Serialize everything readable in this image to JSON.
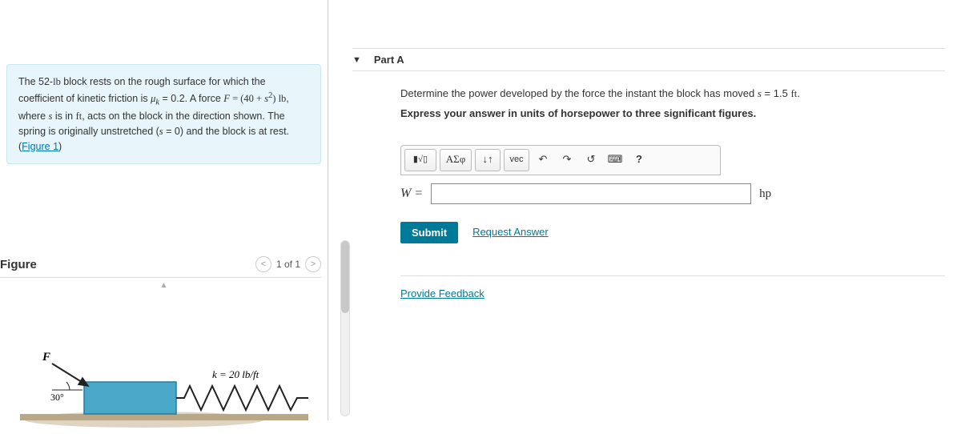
{
  "problem": {
    "html": "The 52-<span class='serif'>lb</span> block rests on the rough surface for which the coefficient of kinetic friction is <span class='serif'><i>μ<sub>k</sub></i></span> = 0.2. A force <span class='serif'><i>F</i> = (40 + <i>s</i><sup>2</sup>) lb</span>, where <span class='serif'><i>s</i></span> is in <span class='serif'>ft</span>, acts on the block in the direction shown. The spring is originally unstretched (<span class='serif'><i>s</i></span> = 0) and the block is at rest. (",
    "figure_link": "Figure 1",
    "html_tail": ")"
  },
  "figure": {
    "title": "Figure",
    "nav_text": "1 of 1",
    "force_label": "F",
    "angle_label": "30°",
    "spring_label": "k = 20 lb/ft",
    "block_color": "#4aa8c9",
    "spring_color": "#222222",
    "ground_color": "#b8a888",
    "shadow_color": "#c8b898"
  },
  "part": {
    "label": "Part A",
    "q1": "Determine the power developed by the force the instant the block has moved <span class='serif'><i>s</i></span> = 1.5 <span class='serif'>ft</span>.",
    "q2": "Express your answer in units of horsepower to three significant figures.",
    "toolbar": {
      "templates": "▮√▯",
      "greek": "ΑΣφ",
      "sort": "↓↑",
      "vec": "vec",
      "undo": "↶",
      "redo": "↷",
      "reset": "↺",
      "keyboard": "⌨",
      "help": "?"
    },
    "answer_label": "W =",
    "answer_value": "",
    "unit": "hp",
    "submit": "Submit",
    "request": "Request Answer"
  },
  "feedback_link": "Provide Feedback"
}
